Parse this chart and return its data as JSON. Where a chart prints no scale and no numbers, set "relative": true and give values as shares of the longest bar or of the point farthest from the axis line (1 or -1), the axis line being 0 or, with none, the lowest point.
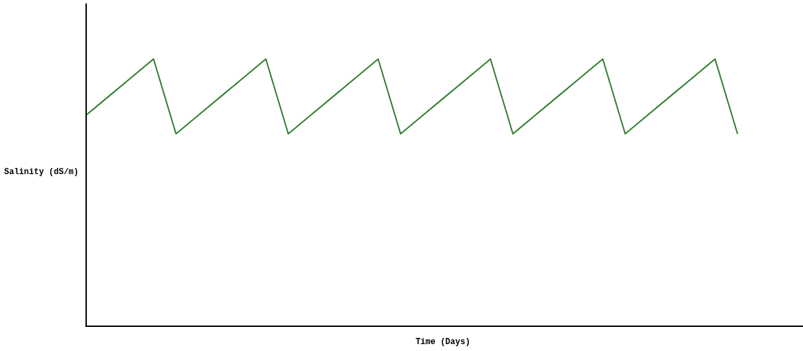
{
  "chart_data": {
    "type": "line",
    "relative": true,
    "xlabel": "Time (Days)",
    "ylabel": "Salinity (dS/m)",
    "categories": [
      null,
      null,
      null,
      null,
      null,
      null,
      null,
      null,
      null,
      null,
      null,
      null,
      null,
      null,
      null,
      null,
      null,
      null,
      null,
      null,
      null,
      null,
      null,
      null,
      null,
      null,
      null,
      null,
      null,
      null
    ],
    "series": [
      {
        "color": "#2e7d2e",
        "values": [
          0.79,
          0.86,
          0.93,
          1,
          0.72,
          0.79,
          0.86,
          0.93,
          1,
          0.72,
          0.79,
          0.86,
          0.93,
          1,
          0.72,
          0.79,
          0.86,
          0.93,
          1,
          0.72,
          0.79,
          0.86,
          0.93,
          1,
          0.72,
          0.79,
          0.86,
          0.93,
          1,
          0.72
        ]
      }
    ],
    "grid": false,
    "legend": false,
    "marker": "none",
    "line_style": "solid"
  }
}
